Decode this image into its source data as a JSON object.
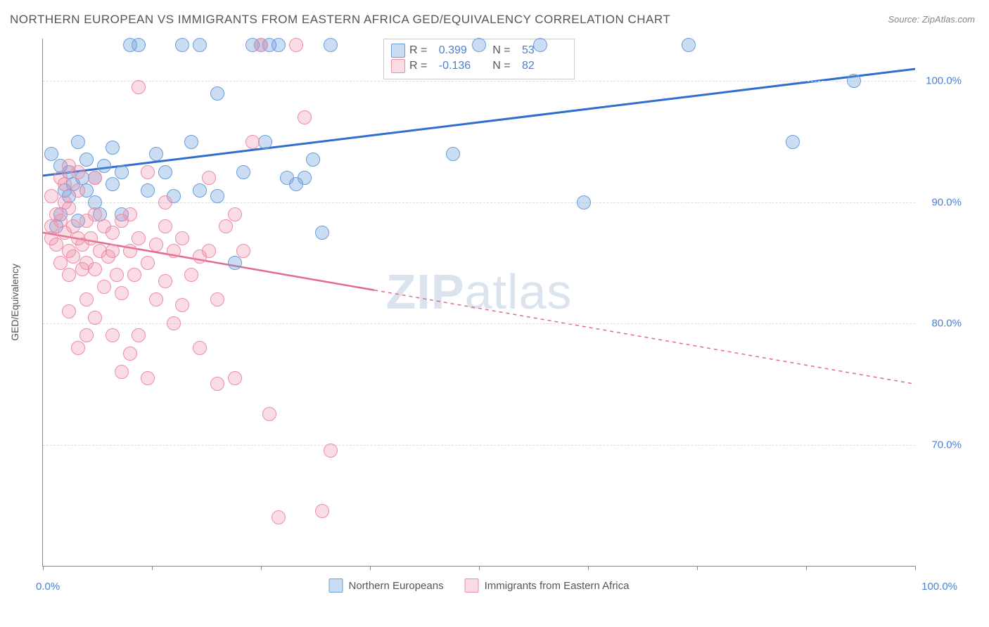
{
  "title": "NORTHERN EUROPEAN VS IMMIGRANTS FROM EASTERN AFRICA GED/EQUIVALENCY CORRELATION CHART",
  "source": "Source: ZipAtlas.com",
  "watermark_bold": "ZIP",
  "watermark_light": "atlas",
  "yaxis_label": "GED/Equivalency",
  "chart": {
    "type": "scatter",
    "xlim": [
      0,
      100
    ],
    "ylim": [
      60,
      103.5
    ],
    "background_color": "#ffffff",
    "grid_color": "#dddddd",
    "axis_color": "#888888",
    "marker_radius": 9,
    "tick_font_color": "#4a7fd6",
    "tick_fontsize": 15,
    "yticks": [
      70,
      80,
      90,
      100
    ],
    "ytick_labels": [
      "70.0%",
      "80.0%",
      "90.0%",
      "100.0%"
    ],
    "xticks": [
      0,
      12.5,
      25,
      37.5,
      50,
      62.5,
      75,
      87.5,
      100
    ],
    "xlabel_min": "0.0%",
    "xlabel_max": "100.0%"
  },
  "series": [
    {
      "key": "blue",
      "name": "Northern Europeans",
      "color_fill": "rgba(106,158,220,0.35)",
      "color_stroke": "#6a9edc",
      "line_color": "#2f6ed0",
      "line_width": 3,
      "line_dash": "none",
      "R_label": "R =",
      "R_value": "0.399",
      "N_label": "N =",
      "N_value": "53",
      "regression": {
        "x1": 0,
        "y1": 92.2,
        "x2": 100,
        "y2": 101.0
      },
      "points": [
        [
          1,
          94
        ],
        [
          2,
          93
        ],
        [
          2.5,
          91
        ],
        [
          3,
          92.5
        ],
        [
          3.5,
          91.5
        ],
        [
          2,
          89
        ],
        [
          4,
          95
        ],
        [
          4.5,
          92
        ],
        [
          5,
          93.5
        ],
        [
          3,
          90.5
        ],
        [
          5,
          91
        ],
        [
          6,
          92
        ],
        [
          6,
          90
        ],
        [
          7,
          93
        ],
        [
          8,
          94.5
        ],
        [
          8,
          91.5
        ],
        [
          9,
          92.5
        ],
        [
          10,
          103
        ],
        [
          11,
          103
        ],
        [
          12,
          91
        ],
        [
          13,
          94
        ],
        [
          14,
          92.5
        ],
        [
          15,
          90.5
        ],
        [
          16,
          103
        ],
        [
          17,
          95
        ],
        [
          18,
          103
        ],
        [
          18,
          91
        ],
        [
          20,
          90.5
        ],
        [
          20,
          99
        ],
        [
          22,
          85
        ],
        [
          23,
          92.5
        ],
        [
          24,
          103
        ],
        [
          25,
          103
        ],
        [
          25.5,
          95
        ],
        [
          26,
          103
        ],
        [
          27,
          103
        ],
        [
          28,
          92
        ],
        [
          29,
          91.5
        ],
        [
          30,
          92
        ],
        [
          31,
          93.5
        ],
        [
          32,
          87.5
        ],
        [
          33,
          103
        ],
        [
          47,
          94
        ],
        [
          50,
          103
        ],
        [
          57,
          103
        ],
        [
          62,
          90
        ],
        [
          74,
          103
        ],
        [
          86,
          95
        ],
        [
          93,
          100
        ],
        [
          1.5,
          88
        ],
        [
          4,
          88.5
        ],
        [
          6.5,
          89
        ],
        [
          9,
          89
        ]
      ]
    },
    {
      "key": "pink",
      "name": "Immigrants from Eastern Africa",
      "color_fill": "rgba(238,140,168,0.3)",
      "color_stroke": "#ee8ca8",
      "line_color": "#e26a8d",
      "line_width": 2.5,
      "line_dash": "5,5",
      "R_label": "R =",
      "R_value": "-0.136",
      "N_label": "N =",
      "N_value": "82",
      "regression": {
        "x1": 0,
        "y1": 87.5,
        "x2": 100,
        "y2": 75.0
      },
      "regression_solid_until_x": 38,
      "points": [
        [
          1,
          88
        ],
        [
          1,
          87
        ],
        [
          1.5,
          89
        ],
        [
          1.5,
          86.5
        ],
        [
          2,
          88.5
        ],
        [
          2,
          85
        ],
        [
          2.5,
          87.5
        ],
        [
          2.5,
          90
        ],
        [
          3,
          86
        ],
        [
          3,
          89.5
        ],
        [
          3,
          84
        ],
        [
          3.5,
          88
        ],
        [
          3.5,
          85.5
        ],
        [
          4,
          87
        ],
        [
          4,
          91
        ],
        [
          4.5,
          86.5
        ],
        [
          4.5,
          84.5
        ],
        [
          5,
          88.5
        ],
        [
          5,
          85
        ],
        [
          5,
          82
        ],
        [
          5.5,
          87
        ],
        [
          6,
          89
        ],
        [
          6,
          84.5
        ],
        [
          6.5,
          86
        ],
        [
          7,
          88
        ],
        [
          7,
          83
        ],
        [
          7.5,
          85.5
        ],
        [
          8,
          87.5
        ],
        [
          8,
          86
        ],
        [
          8.5,
          84
        ],
        [
          9,
          88.5
        ],
        [
          9,
          82.5
        ],
        [
          10,
          86
        ],
        [
          10,
          89
        ],
        [
          10.5,
          84
        ],
        [
          11,
          87
        ],
        [
          12,
          85
        ],
        [
          12,
          92.5
        ],
        [
          13,
          82
        ],
        [
          13,
          86.5
        ],
        [
          14,
          88
        ],
        [
          14,
          83.5
        ],
        [
          15,
          80
        ],
        [
          15,
          86
        ],
        [
          16,
          87
        ],
        [
          16,
          81.5
        ],
        [
          17,
          84
        ],
        [
          18,
          85.5
        ],
        [
          18,
          78
        ],
        [
          19,
          86
        ],
        [
          20,
          82
        ],
        [
          20,
          75
        ],
        [
          21,
          88
        ],
        [
          22,
          75.5
        ],
        [
          23,
          86
        ],
        [
          24,
          95
        ],
        [
          25,
          103
        ],
        [
          26,
          72.5
        ],
        [
          27,
          64
        ],
        [
          29,
          103
        ],
        [
          30,
          97
        ],
        [
          32,
          64.5
        ],
        [
          33,
          69.5
        ],
        [
          3,
          81
        ],
        [
          4,
          78
        ],
        [
          5,
          79
        ],
        [
          6,
          80.5
        ],
        [
          8,
          79
        ],
        [
          9,
          76
        ],
        [
          10,
          77.5
        ],
        [
          11,
          79
        ],
        [
          12,
          75.5
        ],
        [
          2,
          92
        ],
        [
          3,
          93
        ],
        [
          4,
          92.5
        ],
        [
          11,
          99.5
        ],
        [
          1,
          90.5
        ],
        [
          2.5,
          91.5
        ],
        [
          6,
          92
        ],
        [
          14,
          90
        ],
        [
          22,
          89
        ],
        [
          19,
          92
        ]
      ]
    }
  ],
  "legend_bottom": [
    {
      "swatch": "blue",
      "label": "Northern Europeans"
    },
    {
      "swatch": "pink",
      "label": "Immigrants from Eastern Africa"
    }
  ]
}
